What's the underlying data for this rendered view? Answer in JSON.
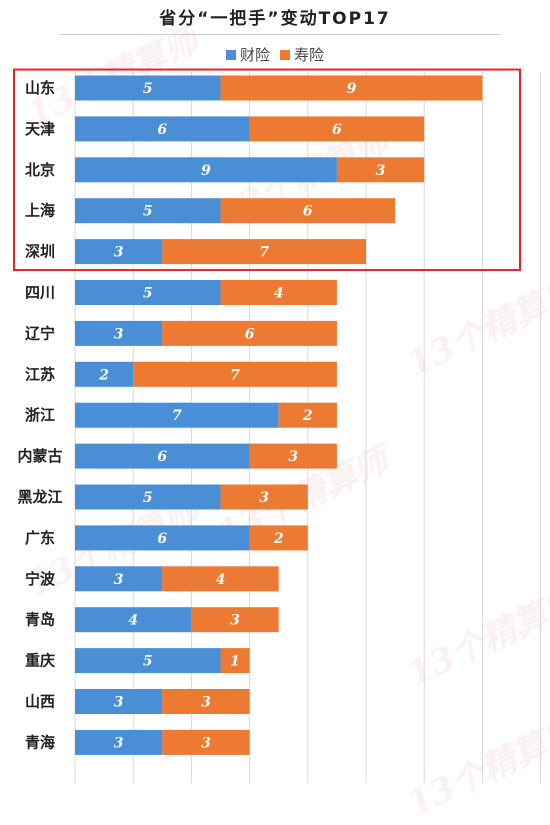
{
  "colors": {
    "finance": "#4a8fd6",
    "life": "#ed7a32",
    "highlight": "#e1252a",
    "grid": "#d9d9d9"
  },
  "watermark_text": "13个精算师",
  "chart_data": {
    "type": "bar",
    "orientation": "horizontal",
    "stacked": true,
    "title": "省分“一把手”变动TOP17",
    "categories": [
      "山东",
      "天津",
      "北京",
      "上海",
      "深圳",
      "四川",
      "辽宁",
      "江苏",
      "浙江",
      "内蒙古",
      "黑龙江",
      "广东",
      "宁波",
      "青岛",
      "重庆",
      "山西",
      "青海"
    ],
    "series": [
      {
        "name": "财险",
        "values": [
          5,
          6,
          9,
          5,
          3,
          5,
          3,
          2,
          7,
          6,
          5,
          6,
          3,
          4,
          5,
          3,
          3
        ]
      },
      {
        "name": "寿险",
        "values": [
          9,
          6,
          3,
          6,
          7,
          4,
          6,
          7,
          2,
          3,
          3,
          2,
          4,
          3,
          1,
          3,
          3
        ]
      }
    ],
    "xlim": [
      0,
      16
    ],
    "grid": true,
    "legend_position": "top",
    "highlighted_categories": [
      "山东",
      "天津",
      "北京",
      "上海",
      "深圳"
    ]
  }
}
